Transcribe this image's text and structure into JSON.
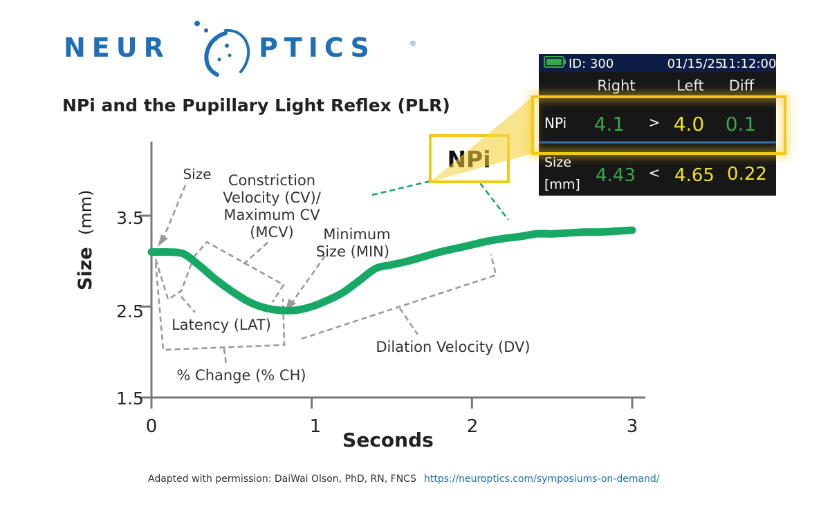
{
  "logo": {
    "left_text": "NEUR",
    "right_text": "PTICS",
    "registered": "®"
  },
  "title": "NPi and the Pupillary Light Reflex (PLR)",
  "colors": {
    "curve": "#17a865",
    "brand": "#1f6fb7",
    "highlight": "#f3c81a",
    "monitor_bg": "#171717",
    "monitor_header": "#0d1d45"
  },
  "callout_label": "NPi",
  "monitor": {
    "battery_icon": "battery-icon",
    "id": "ID: 300",
    "date": "01/15/25",
    "time": "11:12:00",
    "col_right": "Right",
    "col_left": "Left",
    "col_diff": "Diff",
    "npi_label": "NPi",
    "npi_right": "4.1",
    "npi_cmp": ">",
    "npi_left": "4.0",
    "npi_diff": "0.1",
    "size_label_1": "Size",
    "size_label_2": "[mm]",
    "size_right": "4.43",
    "size_cmp": "<",
    "size_left": "4.65",
    "size_diff": "0.22"
  },
  "annotations": {
    "size": "Size",
    "cv_1": "Constriction",
    "cv_2": "Velocity (CV)/",
    "cv_3": "Maximum CV",
    "cv_4": "(MCV)",
    "min_1": "Minimum",
    "min_2": "Size (MIN)",
    "lat": "Latency (LAT)",
    "dv": "Dilation Velocity (DV)",
    "ch": "% Change (% CH)"
  },
  "chart_data": {
    "type": "line",
    "xlabel": "Seconds",
    "ylabel_bold": "Size",
    "ylabel_unit": "(mm)",
    "xlim": [
      0,
      3
    ],
    "ylim": [
      1.5,
      4.0
    ],
    "xticks": [
      "0",
      "1",
      "2",
      "3"
    ],
    "yticks": [
      "1.5",
      "2.5",
      "3.5"
    ],
    "series": [
      {
        "x": [
          0.0,
          0.05,
          0.1,
          0.2,
          0.3,
          0.4,
          0.5,
          0.6,
          0.7,
          0.8,
          0.9,
          1.0,
          1.1,
          1.2,
          1.3,
          1.4,
          1.5,
          1.6,
          1.7,
          1.8,
          1.9,
          2.0,
          2.1,
          2.2,
          2.3,
          2.4,
          2.5,
          2.6,
          2.7,
          2.8,
          2.9,
          3.0
        ],
        "y": [
          3.1,
          3.1,
          3.1,
          3.08,
          2.95,
          2.8,
          2.67,
          2.56,
          2.49,
          2.46,
          2.46,
          2.5,
          2.57,
          2.66,
          2.79,
          2.92,
          2.96,
          3.0,
          3.05,
          3.1,
          3.14,
          3.18,
          3.22,
          3.25,
          3.27,
          3.3,
          3.3,
          3.31,
          3.32,
          3.32,
          3.33,
          3.34
        ]
      }
    ]
  },
  "credit_text": "Adapted with permission: DaiWai Olson, PhD, RN, FNCS",
  "credit_link": "https://neuroptics.com/symposiums-on-demand/"
}
